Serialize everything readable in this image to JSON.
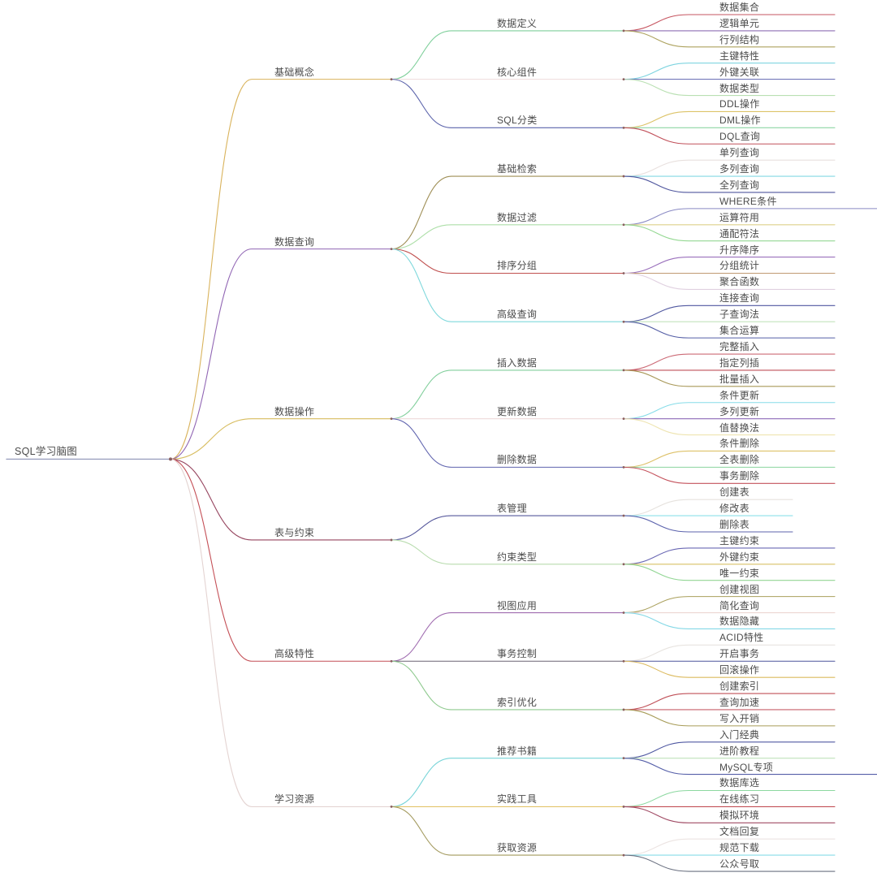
{
  "page_title": "SQL学习脑图",
  "canvas": {
    "background": "#ffffff",
    "text_color": "#4b4b4b",
    "dot_color": "#8a5f5f"
  },
  "tree": {
    "label": "SQL学习脑图",
    "color": "#9ba0bf",
    "children": [
      {
        "label": "基础概念",
        "color": "#d9b35c",
        "children": [
          {
            "label": "数据定义",
            "color": "#7ecf9a",
            "children": [
              {
                "label": "数据集合",
                "color": "#c65560"
              },
              {
                "label": "逻辑单元",
                "color": "#8d6cb5"
              },
              {
                "label": "行列结构",
                "color": "#ada25e"
              }
            ]
          },
          {
            "label": "核心组件",
            "color": "#eedcdc",
            "children": [
              {
                "label": "主键特性",
                "color": "#7ed4e0"
              },
              {
                "label": "外键关联",
                "color": "#6066b0"
              },
              {
                "label": "数据类型",
                "color": "#b9e0b2"
              }
            ]
          },
          {
            "label": "SQL分类",
            "color": "#5b63ab",
            "children": [
              {
                "label": "DDL操作",
                "color": "#dcc368"
              },
              {
                "label": "DML操作",
                "color": "#8ed6a4"
              },
              {
                "label": "DQL查询",
                "color": "#c1505a"
              }
            ]
          }
        ]
      },
      {
        "label": "数据查询",
        "color": "#9166b4",
        "children": [
          {
            "label": "基础检索",
            "color": "#9f8f56",
            "children": [
              {
                "label": "单列查询",
                "color": "#e8e0de"
              },
              {
                "label": "多列查询",
                "color": "#84d8e4"
              },
              {
                "label": "全列查询",
                "color": "#4f569e"
              }
            ]
          },
          {
            "label": "数据过滤",
            "color": "#addfa8",
            "children": [
              {
                "label": "WHERE条件",
                "color": "#8a8ac4",
                "extent": "long"
              },
              {
                "label": "运算符用",
                "color": "#ddd08a"
              },
              {
                "label": "通配符法",
                "color": "#94d892"
              }
            ]
          },
          {
            "label": "排序分组",
            "color": "#c0504f",
            "children": [
              {
                "label": "升序降序",
                "color": "#9a70bc"
              },
              {
                "label": "分组统计",
                "color": "#c09a72"
              },
              {
                "label": "聚合函数",
                "color": "#e0d0e0"
              }
            ]
          },
          {
            "label": "高级查询",
            "color": "#7fd8dc",
            "children": [
              {
                "label": "连接查询",
                "color": "#5058a0"
              },
              {
                "label": "子查询法",
                "color": "#c2e4bc"
              },
              {
                "label": "集合运算",
                "color": "#555fa6"
              }
            ]
          }
        ]
      },
      {
        "label": "数据操作",
        "color": "#d7bc5e",
        "children": [
          {
            "label": "插入数据",
            "color": "#82cf9c",
            "children": [
              {
                "label": "完整插入",
                "color": "#cc6a76"
              },
              {
                "label": "指定列插",
                "color": "#bf4f58"
              },
              {
                "label": "批量插入",
                "color": "#a89858"
              }
            ]
          },
          {
            "label": "更新数据",
            "color": "#eedada",
            "children": [
              {
                "label": "条件更新",
                "color": "#86dce8"
              },
              {
                "label": "多列更新",
                "color": "#8d6ab8"
              },
              {
                "label": "值替换法",
                "color": "#eee4b0"
              }
            ]
          },
          {
            "label": "删除数据",
            "color": "#5f63ae",
            "children": [
              {
                "label": "条件删除",
                "color": "#ddc168"
              },
              {
                "label": "全表删除",
                "color": "#8ad49e"
              },
              {
                "label": "事务删除",
                "color": "#c4525c"
              }
            ]
          }
        ]
      },
      {
        "label": "表与约束",
        "color": "#96455f",
        "children": [
          {
            "label": "表管理",
            "color": "#56589c",
            "children": [
              {
                "label": "创建表",
                "color": "#e6e2de",
                "extent": "short"
              },
              {
                "label": "修改表",
                "color": "#8ee0ea",
                "extent": "short"
              },
              {
                "label": "删除表",
                "color": "#5c63ad",
                "extent": "short"
              }
            ]
          },
          {
            "label": "约束类型",
            "color": "#b8dcae",
            "children": [
              {
                "label": "主键约束",
                "color": "#6a68b4"
              },
              {
                "label": "外键约束",
                "color": "#d8c166"
              },
              {
                "label": "唯一约束",
                "color": "#92d694"
              }
            ]
          }
        ]
      },
      {
        "label": "高级特性",
        "color": "#c44f56",
        "children": [
          {
            "label": "视图应用",
            "color": "#a06cb0",
            "children": [
              {
                "label": "创建视图",
                "color": "#aaa05c"
              },
              {
                "label": "简化查询",
                "color": "#ecd6d2"
              },
              {
                "label": "数据隐藏",
                "color": "#84d8e6"
              }
            ]
          },
          {
            "label": "事务控制",
            "color": "#6b6273",
            "children": [
              {
                "label": "ACID特性",
                "color": "#e8e4e0"
              },
              {
                "label": "开启事务",
                "color": "#4c549c"
              },
              {
                "label": "回滚操作",
                "color": "#dcba5e"
              }
            ]
          },
          {
            "label": "索引优化",
            "color": "#8fca8f",
            "children": [
              {
                "label": "创建索引",
                "color": "#c05058"
              },
              {
                "label": "查询加速",
                "color": "#c65f6a"
              },
              {
                "label": "写入开销",
                "color": "#a79c58"
              }
            ]
          }
        ]
      },
      {
        "label": "学习资源",
        "color": "#e4d4d2",
        "children": [
          {
            "label": "推荐书籍",
            "color": "#77d4d8",
            "children": [
              {
                "label": "入门经典",
                "color": "#5059a2"
              },
              {
                "label": "进阶教程",
                "color": "#c0e2ba"
              },
              {
                "label": "MySQL专项",
                "color": "#545ea8",
                "extent": "long"
              }
            ]
          },
          {
            "label": "实践工具",
            "color": "#e3c36a",
            "children": [
              {
                "label": "数据库选",
                "color": "#8cd8a0"
              },
              {
                "label": "在线练习",
                "color": "#c24f56"
              },
              {
                "label": "模拟环境",
                "color": "#a04a64"
              }
            ]
          },
          {
            "label": "获取资源",
            "color": "#a39a5e",
            "children": [
              {
                "label": "文档回复",
                "color": "#ece4e2"
              },
              {
                "label": "规范下载",
                "color": "#88dce8"
              },
              {
                "label": "公众号取",
                "color": "#6a7080"
              }
            ]
          }
        ]
      }
    ]
  }
}
